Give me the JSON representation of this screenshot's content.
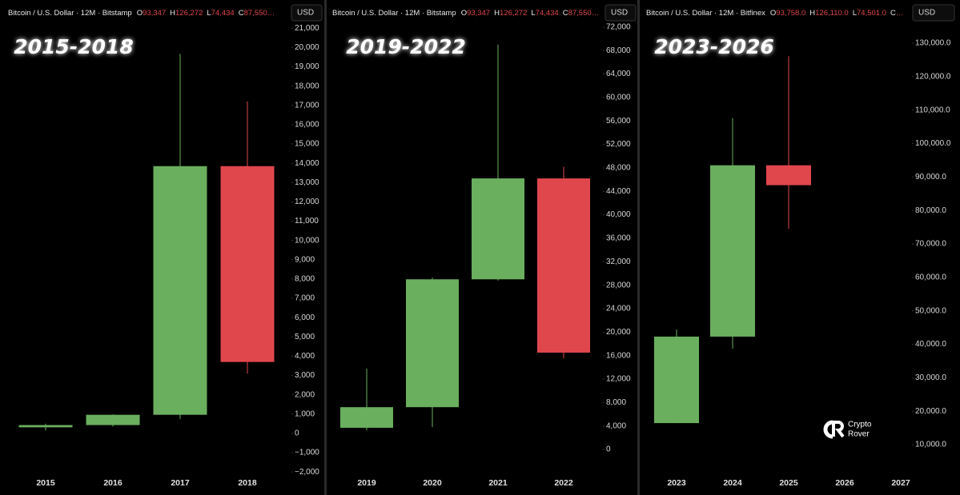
{
  "chart_data": [
    {
      "type": "candlestick",
      "title": "2015-2018",
      "source": "Bitcoin / U.S. Dollar · 12M · Bitstamp",
      "ohlc": [
        {
          "key": "O",
          "text": "93,347"
        },
        {
          "key": "H",
          "text": "126,272"
        },
        {
          "key": "L",
          "text": "74,434"
        },
        {
          "key": "C",
          "text": "87,550…"
        }
      ],
      "unit": "USD",
      "up_color": "#6aaf5e",
      "down_color": "#e0474c",
      "categories": [
        "2015",
        "2016",
        "2017",
        "2018"
      ],
      "open": [
        314,
        430,
        963,
        13850
      ],
      "high": [
        500,
        980,
        19666,
        17200
      ],
      "low": [
        150,
        350,
        750,
        3100
      ],
      "close": [
        430,
        963,
        13850,
        3700
      ],
      "ylim": [
        -2200,
        21300
      ],
      "yticks": [
        {
          "value": -2000,
          "label": "−2,000"
        },
        {
          "value": -1000,
          "label": "−1,000"
        },
        0,
        {
          "value": 1000,
          "label": "1,000"
        },
        {
          "value": 2000,
          "label": "2,000"
        },
        {
          "value": 3000,
          "label": "3,000"
        },
        {
          "value": 4000,
          "label": "4,000"
        },
        {
          "value": 5000,
          "label": "5,000"
        },
        {
          "value": 6000,
          "label": "6,000"
        },
        {
          "value": 7000,
          "label": "7,000"
        },
        {
          "value": 8000,
          "label": "8,000"
        },
        {
          "value": 9000,
          "label": "9,000"
        },
        {
          "value": 10000,
          "label": "10,000"
        },
        {
          "value": 11000,
          "label": "11,000"
        },
        {
          "value": 12000,
          "label": "12,000"
        },
        {
          "value": 13000,
          "label": "13,000"
        },
        {
          "value": 14000,
          "label": "14,000"
        },
        {
          "value": 15000,
          "label": "15,000"
        },
        {
          "value": 16000,
          "label": "16,000"
        },
        {
          "value": 17000,
          "label": "17,000"
        },
        {
          "value": 18000,
          "label": "18,000"
        },
        {
          "value": 19000,
          "label": "19,000"
        },
        {
          "value": 20000,
          "label": "20,000"
        },
        {
          "value": 21000,
          "label": "21,000"
        }
      ]
    },
    {
      "type": "candlestick",
      "title": "2019-2022",
      "source": "Bitcoin / U.S. Dollar · 12M · Bitstamp",
      "ohlc": [
        {
          "key": "O",
          "text": "93,347"
        },
        {
          "key": "H",
          "text": "126,272"
        },
        {
          "key": "L",
          "text": "74,434"
        },
        {
          "key": "C",
          "text": "87,550…"
        }
      ],
      "unit": "USD",
      "up_color": "#6aaf5e",
      "down_color": "#e0474c",
      "categories": [
        "2019",
        "2020",
        "2021",
        "2022"
      ],
      "open": [
        3690,
        7200,
        29000,
        46200
      ],
      "high": [
        13770,
        29300,
        69000,
        48200
      ],
      "low": [
        3270,
        3820,
        28800,
        15500
      ],
      "close": [
        7200,
        29000,
        46200,
        16500
      ],
      "ylim": [
        -4500,
        72800
      ],
      "yticks": [
        0,
        {
          "value": 4000,
          "label": "4,000"
        },
        {
          "value": 8000,
          "label": "8,000"
        },
        {
          "value": 12000,
          "label": "12,000"
        },
        {
          "value": 16000,
          "label": "16,000"
        },
        {
          "value": 20000,
          "label": "20,000"
        },
        {
          "value": 24000,
          "label": "24,000"
        },
        {
          "value": 28000,
          "label": "28,000"
        },
        {
          "value": 32000,
          "label": "32,000"
        },
        {
          "value": 36000,
          "label": "36,000"
        },
        {
          "value": 40000,
          "label": "40,000"
        },
        {
          "value": 44000,
          "label": "44,000"
        },
        {
          "value": 48000,
          "label": "48,000"
        },
        {
          "value": 52000,
          "label": "52,000"
        },
        {
          "value": 56000,
          "label": "56,000"
        },
        {
          "value": 60000,
          "label": "60,000"
        },
        {
          "value": 64000,
          "label": "64,000"
        },
        {
          "value": 68000,
          "label": "68,000"
        },
        {
          "value": 72000,
          "label": "72,000"
        }
      ]
    },
    {
      "type": "candlestick",
      "title": "2023-2026",
      "source": "Bitcoin / U.S. Dollar · 12M · Bitfinex",
      "ohlc": [
        {
          "key": "O",
          "text": "93,758.0"
        },
        {
          "key": "H",
          "text": "126,110.0"
        },
        {
          "key": "L",
          "text": "74,501.0"
        },
        {
          "key": "C",
          "text": "…"
        }
      ],
      "unit": "USD",
      "up_color": "#6aaf5e",
      "down_color": "#e0474c",
      "categories": [
        "2023",
        "2024",
        "2025",
        "2026",
        "2027"
      ],
      "open": [
        16450,
        42300,
        93500,
        null,
        null
      ],
      "high": [
        44400,
        107600,
        126100,
        null,
        null
      ],
      "low": [
        16450,
        38700,
        74500,
        null,
        null
      ],
      "close": [
        42300,
        93500,
        87550,
        null,
        null
      ],
      "ylim": [
        700,
        136200
      ],
      "yticks": [
        {
          "value": 10000,
          "label": "10,000.0"
        },
        {
          "value": 20000,
          "label": "20,000.0"
        },
        {
          "value": 30000,
          "label": "30,000.0"
        },
        {
          "value": 40000,
          "label": "40,000.0"
        },
        {
          "value": 50000,
          "label": "50,000.0"
        },
        {
          "value": 60000,
          "label": "60,000.0"
        },
        {
          "value": 70000,
          "label": "70,000.0"
        },
        {
          "value": 80000,
          "label": "80,000.0"
        },
        {
          "value": 90000,
          "label": "90,000.0"
        },
        {
          "value": 100000,
          "label": "100,000.0"
        },
        {
          "value": 110000,
          "label": "110,000.0"
        },
        {
          "value": 120000,
          "label": "120,000.0"
        },
        {
          "value": 130000,
          "label": "130,000.0"
        }
      ]
    }
  ],
  "watermark": [
    "Crypto",
    "Rover"
  ]
}
